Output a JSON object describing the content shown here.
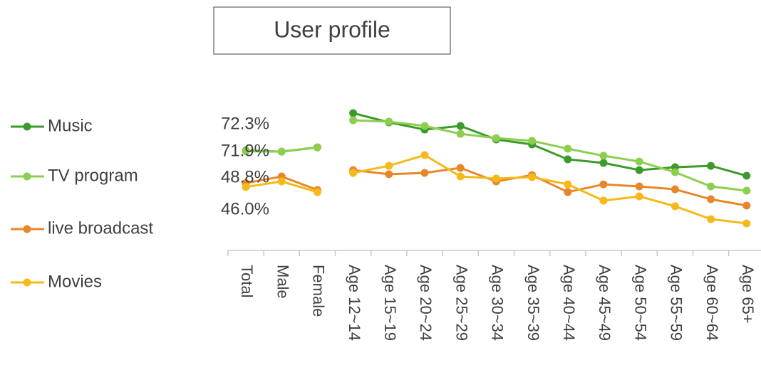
{
  "chart_data": {
    "type": "line",
    "title": "User profile",
    "categories": [
      "Total",
      "Male",
      "Female",
      "Age 12~14",
      "Age 15~19",
      "Age 20~24",
      "Age 25~29",
      "Age 30~34",
      "Age 35~39",
      "Age 40~44",
      "Age 45~49",
      "Age 50~54",
      "Age 55~59",
      "Age 60~64",
      "Age 65+"
    ],
    "segment_starts": [
      0,
      3
    ],
    "legend": "left",
    "series": [
      {
        "name": "Music",
        "color": "#3a9a2a",
        "values": [
          72.3,
          71.6,
          74.7,
          99.5,
          92.8,
          87.6,
          90.2,
          80.4,
          76.8,
          66.0,
          63.4,
          58.2,
          60.3,
          61.3,
          54.1
        ],
        "value_labels": [
          "72.3%",
          null,
          null,
          null,
          null,
          null,
          null,
          null,
          null,
          null,
          null,
          null,
          null,
          null,
          null
        ]
      },
      {
        "name": "TV program",
        "color": "#8ccf4e",
        "values": [
          71.9,
          71.6,
          74.7,
          94.3,
          93.3,
          90.2,
          84.5,
          81.4,
          79.4,
          73.7,
          68.6,
          64.4,
          56.7,
          46.4,
          43.3
        ],
        "value_labels": [
          "71.9%",
          null,
          null,
          null,
          null,
          null,
          null,
          null,
          null,
          null,
          null,
          null,
          null,
          null,
          null
        ]
      },
      {
        "name": "live broadcast",
        "color": "#e8872a",
        "values": [
          48.8,
          53.6,
          43.8,
          58.2,
          55.2,
          56.2,
          59.8,
          50.0,
          54.6,
          42.3,
          47.9,
          46.4,
          44.3,
          37.1,
          32.5
        ],
        "value_labels": [
          "48.8%",
          null,
          null,
          null,
          null,
          null,
          null,
          null,
          null,
          null,
          null,
          null,
          null,
          null,
          null
        ]
      },
      {
        "name": "Movies",
        "color": "#f5b919",
        "values": [
          46.0,
          50.0,
          42.3,
          56.2,
          61.3,
          69.1,
          53.6,
          52.1,
          53.1,
          47.9,
          36.1,
          39.2,
          32.0,
          22.7,
          19.6
        ],
        "value_labels": [
          "46.0%",
          null,
          null,
          null,
          null,
          null,
          null,
          null,
          null,
          null,
          null,
          null,
          null,
          null,
          null
        ]
      }
    ]
  }
}
